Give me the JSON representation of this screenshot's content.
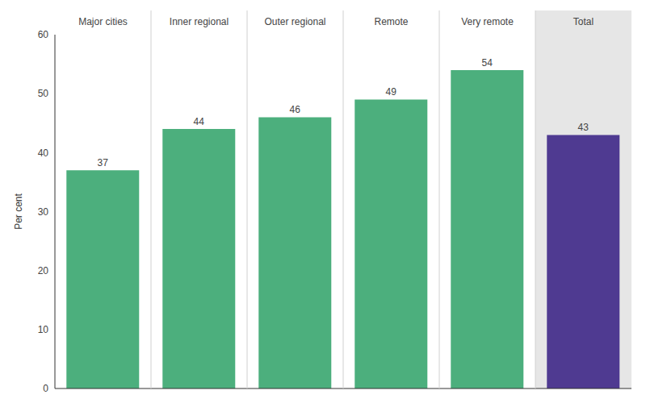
{
  "chart_data": {
    "type": "bar",
    "categories": [
      "Major cities",
      "Inner regional",
      "Outer regional",
      "Remote",
      "Very remote",
      "Total"
    ],
    "values": [
      37,
      44,
      46,
      49,
      54,
      43
    ],
    "colors": [
      "#4caf7d",
      "#4caf7d",
      "#4caf7d",
      "#4caf7d",
      "#4caf7d",
      "#4f3a91"
    ],
    "ylim": [
      0,
      60
    ],
    "yticks": [
      0,
      10,
      20,
      30,
      40,
      50,
      60
    ],
    "y_label": "Per cent",
    "data_labels": true,
    "grid": false
  }
}
